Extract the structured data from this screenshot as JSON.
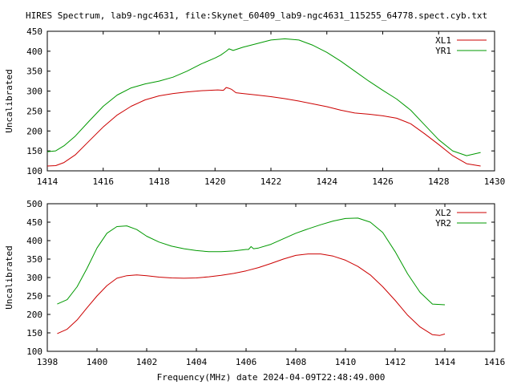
{
  "title": "HIRES Spectrum, lab9-ngc4631, file:Skynet_60409_lab9-ngc4631_115255_64778.spect.cyb.txt",
  "xlabel": "Frequency(MHz) date 2024-04-09T22:48:49.000",
  "colors": {
    "red": "#cc0000",
    "green": "#009900",
    "axis": "#000000",
    "background": "#ffffff"
  },
  "chart_data": [
    {
      "type": "line",
      "ylabel": "Uncalibrated",
      "xlim": [
        1414,
        1430
      ],
      "ylim": [
        100,
        450
      ],
      "xticks": [
        1414,
        1416,
        1418,
        1420,
        1422,
        1424,
        1426,
        1428,
        1430
      ],
      "yticks": [
        100,
        150,
        200,
        250,
        300,
        350,
        400,
        450
      ],
      "grid": false,
      "legend_position": "top-right",
      "series": [
        {
          "name": "XL1",
          "color": "#cc0000",
          "x": [
            1414.0,
            1414.3,
            1414.6,
            1415.0,
            1415.5,
            1416.0,
            1416.5,
            1417.0,
            1417.5,
            1418.0,
            1418.5,
            1419.0,
            1419.5,
            1419.8,
            1420.1,
            1420.3,
            1420.4,
            1420.5,
            1420.6,
            1420.75,
            1421.0,
            1421.5,
            1422.0,
            1422.5,
            1423.0,
            1423.5,
            1424.0,
            1424.5,
            1425.0,
            1425.5,
            1426.0,
            1426.5,
            1427.0,
            1427.5,
            1428.0,
            1428.5,
            1429.0,
            1429.5
          ],
          "y": [
            112,
            113,
            121,
            140,
            175,
            210,
            240,
            262,
            278,
            288,
            294,
            298,
            301,
            302,
            303,
            302,
            309,
            307,
            304,
            296,
            294,
            290,
            286,
            281,
            275,
            268,
            261,
            252,
            245,
            242,
            238,
            232,
            218,
            193,
            166,
            138,
            118,
            112
          ]
        },
        {
          "name": "YR1",
          "color": "#009900",
          "x": [
            1414.0,
            1414.3,
            1414.6,
            1415.0,
            1415.5,
            1416.0,
            1416.5,
            1417.0,
            1417.5,
            1418.0,
            1418.5,
            1419.0,
            1419.5,
            1420.0,
            1420.2,
            1420.4,
            1420.5,
            1420.65,
            1421.0,
            1421.5,
            1422.0,
            1422.5,
            1423.0,
            1423.5,
            1424.0,
            1424.5,
            1425.0,
            1425.5,
            1426.0,
            1426.5,
            1427.0,
            1427.5,
            1428.0,
            1428.5,
            1429.0,
            1429.5
          ],
          "y": [
            148,
            150,
            163,
            187,
            225,
            262,
            290,
            308,
            318,
            325,
            335,
            350,
            368,
            383,
            390,
            400,
            406,
            402,
            410,
            419,
            428,
            431,
            428,
            415,
            397,
            375,
            350,
            325,
            302,
            280,
            252,
            215,
            178,
            150,
            138,
            146
          ]
        }
      ]
    },
    {
      "type": "line",
      "ylabel": "Uncalibrated",
      "xlim": [
        1398,
        1416
      ],
      "ylim": [
        100,
        500
      ],
      "xticks": [
        1398,
        1400,
        1402,
        1404,
        1406,
        1408,
        1410,
        1412,
        1414,
        1416
      ],
      "yticks": [
        100,
        150,
        200,
        250,
        300,
        350,
        400,
        450,
        500
      ],
      "grid": false,
      "legend_position": "top-right",
      "series": [
        {
          "name": "XL2",
          "color": "#cc0000",
          "x": [
            1398.4,
            1398.8,
            1399.2,
            1399.6,
            1400.0,
            1400.4,
            1400.8,
            1401.2,
            1401.6,
            1402.0,
            1402.5,
            1403.0,
            1403.5,
            1404.0,
            1404.5,
            1405.0,
            1405.5,
            1406.0,
            1406.5,
            1407.0,
            1407.5,
            1408.0,
            1408.5,
            1409.0,
            1409.5,
            1410.0,
            1410.5,
            1411.0,
            1411.5,
            1412.0,
            1412.5,
            1413.0,
            1413.5,
            1413.8,
            1414.0
          ],
          "y": [
            148,
            160,
            185,
            218,
            250,
            278,
            298,
            305,
            307,
            305,
            301,
            299,
            298,
            299,
            302,
            306,
            311,
            318,
            327,
            338,
            350,
            360,
            364,
            364,
            358,
            347,
            330,
            307,
            275,
            238,
            198,
            166,
            145,
            143,
            147
          ]
        },
        {
          "name": "YR2",
          "color": "#009900",
          "x": [
            1398.4,
            1398.8,
            1399.2,
            1399.6,
            1400.0,
            1400.4,
            1400.8,
            1401.2,
            1401.6,
            1402.0,
            1402.5,
            1403.0,
            1403.5,
            1404.0,
            1404.5,
            1405.0,
            1405.5,
            1406.0,
            1406.1,
            1406.2,
            1406.3,
            1406.5,
            1407.0,
            1407.5,
            1408.0,
            1408.5,
            1409.0,
            1409.5,
            1410.0,
            1410.5,
            1411.0,
            1411.5,
            1412.0,
            1412.5,
            1413.0,
            1413.5,
            1414.0
          ],
          "y": [
            228,
            240,
            275,
            325,
            380,
            420,
            438,
            440,
            430,
            412,
            396,
            385,
            378,
            373,
            370,
            370,
            372,
            376,
            376,
            384,
            378,
            380,
            390,
            405,
            420,
            432,
            443,
            453,
            460,
            461,
            450,
            422,
            370,
            310,
            260,
            228,
            226
          ]
        }
      ]
    }
  ]
}
